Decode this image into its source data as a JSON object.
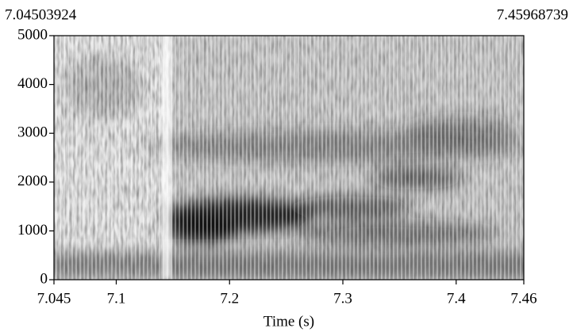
{
  "chart_data": {
    "type": "spectrogram",
    "xlabel": "Time (s)",
    "xlim": [
      7.04503924,
      7.45968739
    ],
    "xticks": [
      {
        "value": 7.04503924,
        "label": "7.045"
      },
      7.1,
      7.2,
      7.3,
      7.4,
      {
        "value": 7.45968739,
        "label": "7.46"
      }
    ],
    "ylim": [
      0,
      5000
    ],
    "yticks": [
      0,
      1000,
      2000,
      3000,
      4000,
      5000
    ]
  }
}
